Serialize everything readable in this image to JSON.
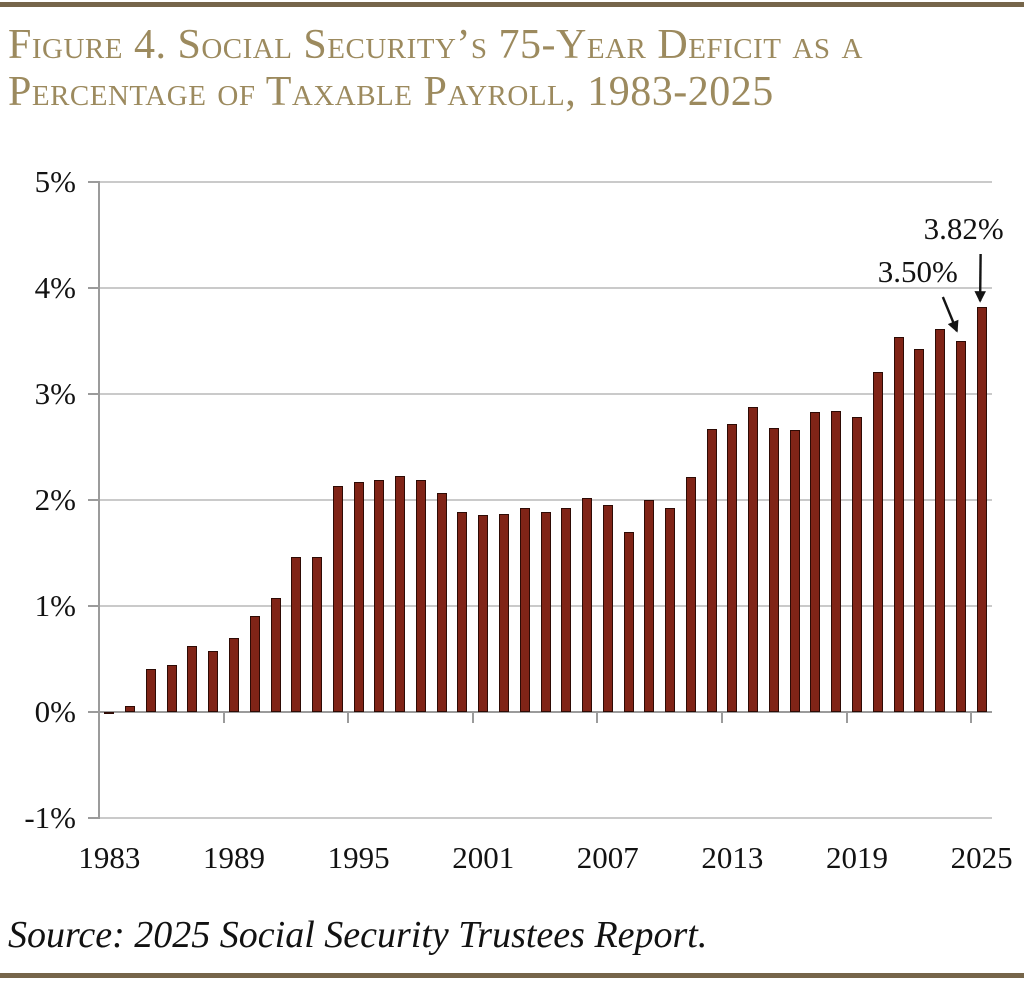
{
  "figure": {
    "title_line1": "Figure 4. Social Security’s 75-Year Deficit as a",
    "title_line2": "Percentage of Taxable Payroll, 1983-2025",
    "source": "Source: 2025 Social Security Trustees Report."
  },
  "chart_data": {
    "type": "bar",
    "title": "Figure 4. Social Security’s 75-Year Deficit as a Percentage of Taxable Payroll, 1983-2025",
    "xlabel": "",
    "ylabel": "",
    "y_unit": "%",
    "ylim": [
      -1,
      5
    ],
    "grid": "horizontal",
    "legend": "none",
    "x": [
      1983,
      1984,
      1985,
      1986,
      1987,
      1988,
      1989,
      1990,
      1991,
      1992,
      1993,
      1994,
      1995,
      1996,
      1997,
      1998,
      1999,
      2000,
      2001,
      2002,
      2003,
      2004,
      2005,
      2006,
      2007,
      2008,
      2009,
      2010,
      2011,
      2012,
      2013,
      2014,
      2015,
      2016,
      2017,
      2018,
      2019,
      2020,
      2021,
      2022,
      2023,
      2024,
      2025
    ],
    "values": [
      -0.02,
      0.06,
      0.41,
      0.44,
      0.62,
      0.58,
      0.7,
      0.91,
      1.08,
      1.46,
      1.46,
      2.13,
      2.17,
      2.19,
      2.23,
      2.19,
      2.07,
      1.89,
      1.86,
      1.87,
      1.92,
      1.89,
      1.92,
      2.02,
      1.95,
      1.7,
      2.0,
      1.92,
      2.22,
      2.67,
      2.72,
      2.88,
      2.68,
      2.66,
      2.83,
      2.84,
      2.78,
      3.21,
      3.54,
      3.42,
      3.61,
      3.5,
      3.82
    ],
    "ytick_labels": [
      "5%",
      "4%",
      "3%",
      "2%",
      "1%",
      "0%",
      "-1%"
    ],
    "xtick_labels": [
      "1983",
      "1989",
      "1995",
      "2001",
      "2007",
      "2013",
      "2019",
      "2025"
    ],
    "xtick_interval": 6,
    "annotations": [
      {
        "year": 2024,
        "label": "3.50%"
      },
      {
        "year": 2025,
        "label": "3.82%"
      }
    ]
  },
  "colors": {
    "bar_fill": "#802417",
    "bar_border": "#2E0B05",
    "title": "#9C8A5E",
    "rule": "#76654A",
    "gridline": "#CACACA",
    "axis": "#9B9B9B",
    "text": "#121212"
  }
}
